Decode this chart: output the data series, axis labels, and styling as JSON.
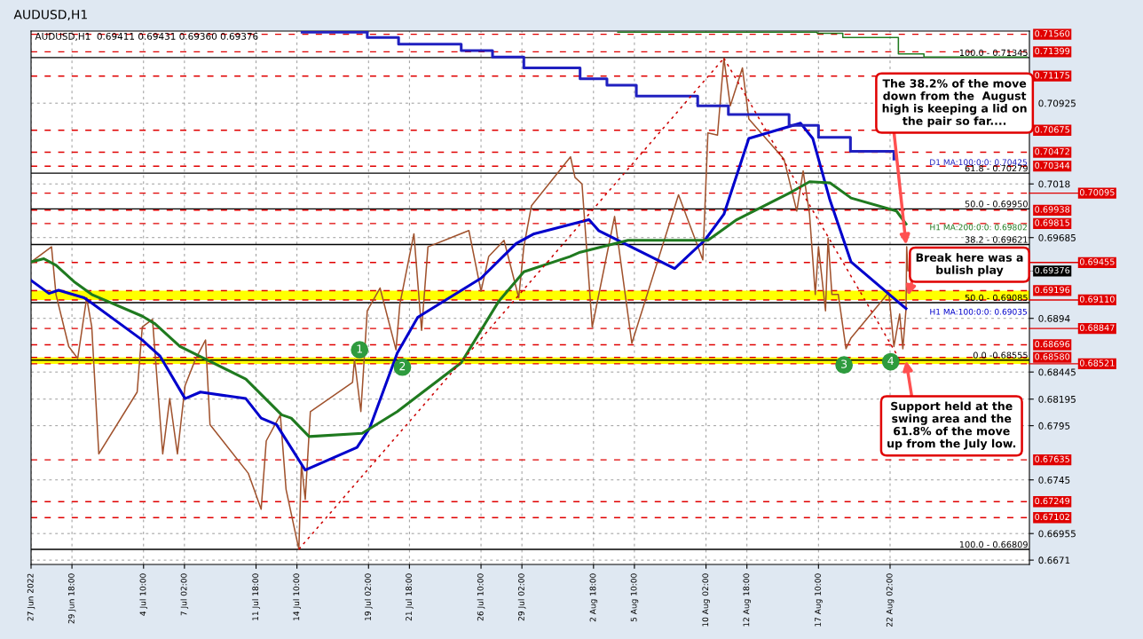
{
  "chart_data": {
    "type": "line",
    "title": "AUDUSD,H1",
    "subtitle": "AUDUSD,H1  0.69411 0.69431 0.69360 0.69376",
    "xlim": [
      "2022-06-27T02:00",
      "2022-08-31T04:00"
    ],
    "ylim": [
      0.6667,
      0.7159
    ],
    "xticks": [
      {
        "value": "2022-06-27T02:00",
        "label": "27 Jun 2022"
      },
      {
        "value": "2022-06-29T18:00",
        "label": "29 Jun 18:00"
      },
      {
        "value": "2022-07-04T10:00",
        "label": "4 Jul 10:00"
      },
      {
        "value": "2022-07-07T02:00",
        "label": "7 Jul 02:00"
      },
      {
        "value": "2022-07-11T18:00",
        "label": "11 Jul 18:00"
      },
      {
        "value": "2022-07-14T10:00",
        "label": "14 Jul 10:00"
      },
      {
        "value": "2022-07-19T02:00",
        "label": "19 Jul 02:00"
      },
      {
        "value": "2022-07-21T18:00",
        "label": "21 Jul 18:00"
      },
      {
        "value": "2022-07-26T10:00",
        "label": "26 Jul 10:00"
      },
      {
        "value": "2022-07-29T02:00",
        "label": "29 Jul 02:00"
      },
      {
        "value": "2022-08-02T18:00",
        "label": "2 Aug 18:00"
      },
      {
        "value": "2022-08-05T10:00",
        "label": "5 Aug 10:00"
      },
      {
        "value": "2022-08-10T02:00",
        "label": "10 Aug 02:00"
      },
      {
        "value": "2022-08-12T18:00",
        "label": "12 Aug 18:00"
      },
      {
        "value": "2022-08-17T10:00",
        "label": "17 Aug 10:00"
      },
      {
        "value": "2022-08-22T02:00",
        "label": "22 Aug 02:00"
      }
    ],
    "yticks": [
      0.6671,
      0.66955,
      0.6745,
      0.6795,
      0.68195,
      0.68445,
      0.6894,
      0.69685,
      0.7018,
      0.70925
    ],
    "grid": true,
    "legend": false,
    "marker": "none",
    "series": [
      {
        "color": "#a0522d",
        "line_style": "solid",
        "x": [
          "2022-06-27T02:00",
          "2022-06-28T10:00",
          "2022-06-28T17:00",
          "2022-06-29T13:00",
          "2022-06-30T03:00",
          "2022-06-30T17:00",
          "2022-07-01T01:00",
          "2022-07-01T12:00",
          "2022-07-04T00:00",
          "2022-07-04T08:00",
          "2022-07-05T00:00",
          "2022-07-05T16:00",
          "2022-07-06T03:00",
          "2022-07-06T15:00",
          "2022-07-07T03:00",
          "2022-07-07T19:00",
          "2022-07-08T11:00",
          "2022-07-08T18:00",
          "2022-07-11T06:00",
          "2022-07-12T02:00",
          "2022-07-12T10:00",
          "2022-07-13T08:00",
          "2022-07-13T17:00",
          "2022-07-14T13:00",
          "2022-07-14T17:00",
          "2022-07-14T23:00",
          "2022-07-15T07:00",
          "2022-07-18T01:00",
          "2022-07-18T04:00",
          "2022-07-18T14:00",
          "2022-07-19T00:00",
          "2022-07-19T20:00",
          "2022-07-20T21:00",
          "2022-07-21T03:00",
          "2022-07-22T01:00",
          "2022-07-22T13:00",
          "2022-07-22T23:00",
          "2022-07-25T15:00",
          "2022-07-26T10:00",
          "2022-07-26T22:00",
          "2022-07-27T22:00",
          "2022-07-28T21:00",
          "2022-07-29T05:00",
          "2022-07-29T17:00",
          "2022-08-01T06:00",
          "2022-08-01T13:00",
          "2022-08-02T00:00",
          "2022-08-02T16:00",
          "2022-08-04T03:00",
          "2022-08-05T06:00",
          "2022-08-08T07:00",
          "2022-08-09T21:00",
          "2022-08-10T05:00",
          "2022-08-10T20:00",
          "2022-08-11T06:00",
          "2022-08-11T16:00",
          "2022-08-12T11:00",
          "2022-08-12T21:00",
          "2022-08-15T04:00",
          "2022-08-16T00:00",
          "2022-08-16T10:00",
          "2022-08-16T20:00",
          "2022-08-17T05:00",
          "2022-08-17T10:00",
          "2022-08-17T21:00",
          "2022-08-18T01:00",
          "2022-08-18T07:00",
          "2022-08-18T17:00",
          "2022-08-19T05:00",
          "2022-08-19T13:00",
          "2022-08-22T00:00",
          "2022-08-22T08:00",
          "2022-08-22T17:00",
          "2022-08-22T22:00",
          "2022-08-23T03:00",
          "2022-08-23T04:00",
          "2022-08-23T06:00"
        ],
        "values": [
          0.6946,
          0.696,
          0.6916,
          0.6868,
          0.6857,
          0.6913,
          0.6886,
          0.6769,
          0.6826,
          0.6886,
          0.6893,
          0.6769,
          0.682,
          0.6769,
          0.6832,
          0.6856,
          0.6874,
          0.6796,
          0.6751,
          0.6718,
          0.6781,
          0.6805,
          0.6736,
          0.6681,
          0.676,
          0.6727,
          0.6808,
          0.6835,
          0.6856,
          0.6808,
          0.6901,
          0.6922,
          0.6865,
          0.6907,
          0.6972,
          0.6883,
          0.696,
          0.6975,
          0.6919,
          0.6951,
          0.6966,
          0.6913,
          0.696,
          0.6998,
          0.7043,
          0.7024,
          0.7018,
          0.6886,
          0.6988,
          0.6871,
          0.7008,
          0.6948,
          0.7065,
          0.7063,
          0.7134,
          0.709,
          0.7125,
          0.7078,
          0.7041,
          0.6993,
          0.703,
          0.699,
          0.6916,
          0.696,
          0.6901,
          0.6968,
          0.6916,
          0.6916,
          0.6866,
          0.6876,
          0.6918,
          0.6868,
          0.6898,
          0.6866,
          0.6903,
          0.696,
          0.6938
        ]
      },
      {
        "name": "H1 MA:100:0:0: 0.69035",
        "color": "#0000cc",
        "line_style": "solid",
        "x": [
          "2022-06-27T02:00",
          "2022-06-28T06:00",
          "2022-06-28T21:00",
          "2022-06-30T13:00",
          "2022-07-01T01:00",
          "2022-07-04T08:00",
          "2022-07-05T12:00",
          "2022-07-07T03:00",
          "2022-07-08T03:00",
          "2022-07-11T02:00",
          "2022-07-12T02:00",
          "2022-07-13T02:00",
          "2022-07-14T23:00",
          "2022-07-18T08:00",
          "2022-07-19T04:00",
          "2022-07-20T23:00",
          "2022-07-22T07:00",
          "2022-07-26T10:00",
          "2022-07-28T17:00",
          "2022-07-29T21:00",
          "2022-08-02T11:00",
          "2022-08-03T02:00",
          "2022-08-08T01:00",
          "2022-08-10T00:00",
          "2022-08-11T06:00",
          "2022-08-12T21:00",
          "2022-08-16T06:00",
          "2022-08-17T01:00",
          "2022-08-18T04:00",
          "2022-08-19T13:00",
          "2022-08-23T03:00"
        ],
        "values": [
          0.6929,
          0.6917,
          0.692,
          0.6913,
          0.6908,
          0.6874,
          0.6859,
          0.682,
          0.6826,
          0.682,
          0.6802,
          0.6796,
          0.6754,
          0.6775,
          0.6793,
          0.6862,
          0.6895,
          0.6931,
          0.6963,
          0.6972,
          0.6985,
          0.6975,
          0.694,
          0.6966,
          0.699,
          0.706,
          0.7074,
          0.706,
          0.7003,
          0.6946,
          0.6903
        ]
      },
      {
        "name": "H1 MA:200:0:0: 0.69802",
        "color": "#1f7a1f",
        "line_style": "solid",
        "x": [
          "2022-06-27T02:00",
          "2022-06-27T22:00",
          "2022-06-28T17:00",
          "2022-06-29T21:00",
          "2022-07-01T01:00",
          "2022-07-04T08:00",
          "2022-07-05T04:00",
          "2022-07-06T19:00",
          "2022-07-11T02:00",
          "2022-07-13T10:00",
          "2022-07-14T01:00",
          "2022-07-15T05:00",
          "2022-07-18T16:00",
          "2022-07-20T23:00",
          "2022-07-25T03:00",
          "2022-07-27T14:00",
          "2022-07-29T05:00",
          "2022-08-01T05:00",
          "2022-08-01T21:00",
          "2022-08-05T00:00",
          "2022-08-10T05:00",
          "2022-08-12T02:00",
          "2022-08-15T17:00",
          "2022-08-16T20:00",
          "2022-08-18T04:00",
          "2022-08-19T13:00",
          "2022-08-22T12:00",
          "2022-08-23T03:00"
        ],
        "values": [
          0.6946,
          0.6949,
          0.6943,
          0.6928,
          0.6916,
          0.6896,
          0.6889,
          0.6868,
          0.6838,
          0.6805,
          0.6802,
          0.6785,
          0.6788,
          0.6808,
          0.6853,
          0.691,
          0.6937,
          0.6951,
          0.6955,
          0.6966,
          0.6966,
          0.6985,
          0.7011,
          0.702,
          0.7019,
          0.7005,
          0.6993,
          0.6981
        ]
      },
      {
        "name": "D1 MA:100:0:0: 0.70425",
        "type": "step",
        "color": "#2020c0",
        "line_style": "solid",
        "x": [
          "2022-07-14T18:00",
          "2022-07-19T00:00",
          "2022-07-21T01:00",
          "2022-07-25T03:00",
          "2022-07-27T04:00",
          "2022-07-29T05:00",
          "2022-08-01T21:00",
          "2022-08-03T15:00",
          "2022-08-05T13:00",
          "2022-08-09T13:00",
          "2022-08-11T13:00",
          "2022-08-15T12:00",
          "2022-08-17T10:00",
          "2022-08-19T12:00",
          "2022-08-22T08:00"
        ],
        "values": [
          0.7158,
          0.7153,
          0.7147,
          0.7141,
          0.7135,
          0.7125,
          0.7115,
          0.7109,
          0.7099,
          0.709,
          0.7082,
          0.7072,
          0.7061,
          0.7048,
          0.7041
        ]
      },
      {
        "type": "step",
        "color": "#1f7a1f",
        "line_style": "solid",
        "x": [
          "2022-08-04T08:00",
          "2022-08-17T08:00",
          "2022-08-19T00:00",
          "2022-08-22T15:00",
          "2022-08-24T07:00",
          "2022-08-31T00:00"
        ],
        "values": [
          0.7158,
          0.7157,
          0.7153,
          0.7138,
          0.7135,
          0.7135
        ]
      },
      {
        "color": "#cc0000",
        "line_style": "dotted",
        "x": [
          "2022-07-14T13:00",
          "2022-08-11T06:00"
        ],
        "values": [
          0.6681,
          0.7134
        ]
      },
      {
        "color": "#cc0000",
        "line_style": "dotted",
        "x": [
          "2022-08-11T06:00",
          "2022-08-22T17:00"
        ],
        "values": [
          0.7134,
          0.6856
        ]
      }
    ],
    "bands": [
      {
        "axis": "y",
        "from": 0.6911,
        "to": 0.69196,
        "color": "#ffff00"
      },
      {
        "axis": "y",
        "from": 0.68521,
        "to": 0.6858,
        "color": "#ffff00"
      }
    ],
    "ref_lines": [
      {
        "axis": "y",
        "value": 0.71345,
        "color": "#000000",
        "line_style": "solid"
      },
      {
        "axis": "y",
        "value": 0.70279,
        "color": "#000000",
        "line_style": "solid"
      },
      {
        "axis": "y",
        "value": 0.6995,
        "color": "#000000",
        "line_style": "solid"
      },
      {
        "axis": "y",
        "value": 0.69621,
        "color": "#000000",
        "line_style": "solid"
      },
      {
        "axis": "y",
        "value": 0.69085,
        "color": "#000000",
        "line_style": "solid"
      },
      {
        "axis": "y",
        "value": 0.68555,
        "color": "#000000",
        "line_style": "solid"
      },
      {
        "axis": "y",
        "value": 0.66809,
        "color": "#000000",
        "line_style": "solid"
      },
      {
        "axis": "y",
        "value": 0.7156,
        "label": "0.71560",
        "color": "#e00000",
        "line_style": "dashed"
      },
      {
        "axis": "y",
        "value": 0.71399,
        "label": "0.71399",
        "color": "#e00000",
        "line_style": "dashed"
      },
      {
        "axis": "y",
        "value": 0.71175,
        "label": "0.71175",
        "color": "#e00000",
        "line_style": "dashed"
      },
      {
        "axis": "y",
        "value": 0.70675,
        "label": "0.70675",
        "color": "#e00000",
        "line_style": "dashed"
      },
      {
        "axis": "y",
        "value": 0.70472,
        "label": "0.70472",
        "color": "#e00000",
        "line_style": "dashed"
      },
      {
        "axis": "y",
        "value": 0.70344,
        "label": "0.70344",
        "color": "#e00000",
        "line_style": "dashed"
      },
      {
        "axis": "y",
        "value": 0.70095,
        "label": "0.70095",
        "color": "#e00000",
        "line_style": "dashed"
      },
      {
        "axis": "y",
        "value": 0.69938,
        "label": "0.69938",
        "color": "#e00000",
        "line_style": "dashed"
      },
      {
        "axis": "y",
        "value": 0.69815,
        "label": "0.69815",
        "color": "#e00000",
        "line_style": "dashed"
      },
      {
        "axis": "y",
        "value": 0.69455,
        "label": "0.69455",
        "color": "#e00000",
        "line_style": "dashed"
      },
      {
        "axis": "y",
        "value": 0.69196,
        "label": "0.69196",
        "color": "#e00000",
        "line_style": "dashed"
      },
      {
        "axis": "y",
        "value": 0.6911,
        "label": "0.69110",
        "color": "#e00000",
        "line_style": "dashed"
      },
      {
        "axis": "y",
        "value": 0.68847,
        "label": "0.68847",
        "color": "#e00000",
        "line_style": "dashed"
      },
      {
        "axis": "y",
        "value": 0.68696,
        "label": "0.68696",
        "color": "#e00000",
        "line_style": "dashed"
      },
      {
        "axis": "y",
        "value": 0.6858,
        "label": "0.68580",
        "color": "#e00000",
        "line_style": "dashed"
      },
      {
        "axis": "y",
        "value": 0.68521,
        "label": "0.68521",
        "color": "#e00000",
        "line_style": "dashed"
      },
      {
        "axis": "y",
        "value": 0.67635,
        "label": "0.67635",
        "color": "#e00000",
        "line_style": "dashed"
      },
      {
        "axis": "y",
        "value": 0.67249,
        "label": "0.67249",
        "color": "#e00000",
        "line_style": "dashed"
      },
      {
        "axis": "y",
        "value": 0.67102,
        "label": "0.67102",
        "color": "#e00000",
        "line_style": "dashed"
      }
    ],
    "annotations": [
      {
        "text": "The 38.2% of the move\ndown from the  August\nhigh is keeping a lid on\nthe pair so far....",
        "x": "2022-08-23T03:00",
        "y": 0.6962
      },
      {
        "text": "Break here was a\nbulish play",
        "x": "2022-08-23T06:00",
        "y": 0.6915
      },
      {
        "text": "Support held at the\nswing area and the\n61.8% of the move\nup from the July low.",
        "x": "2022-08-23T03:00",
        "y": 0.6855
      },
      {
        "text": "1",
        "x": "2022-07-18T12:00",
        "y": 0.6865
      },
      {
        "text": "2",
        "x": "2022-07-21T07:00",
        "y": 0.6849
      },
      {
        "text": "3",
        "x": "2022-08-19T02:00",
        "y": 0.6851
      },
      {
        "text": "4",
        "x": "2022-08-22T03:00",
        "y": 0.6854
      },
      {
        "text": "0.69376",
        "x": "2022-08-23T06:00",
        "y": 0.69376
      },
      {
        "text": "100.0 - 0.71345",
        "x": "2022-08-31T02:00",
        "y": 0.71345
      },
      {
        "text": "61.8 - 0.70279",
        "x": "2022-08-31T02:00",
        "y": 0.70279
      },
      {
        "text": "50.0 - 0.69950",
        "x": "2022-08-31T02:00",
        "y": 0.6995
      },
      {
        "text": "38.2 - 0.69621",
        "x": "2022-08-31T02:00",
        "y": 0.69621
      },
      {
        "text": "50.0 - 0.69085",
        "x": "2022-08-31T02:00",
        "y": 0.69085
      },
      {
        "text": "0.0 -0.68555",
        "x": "2022-08-31T02:00",
        "y": 0.68555
      },
      {
        "text": "100.0 - 0.66809",
        "x": "2022-08-31T02:00",
        "y": 0.66809
      }
    ]
  }
}
